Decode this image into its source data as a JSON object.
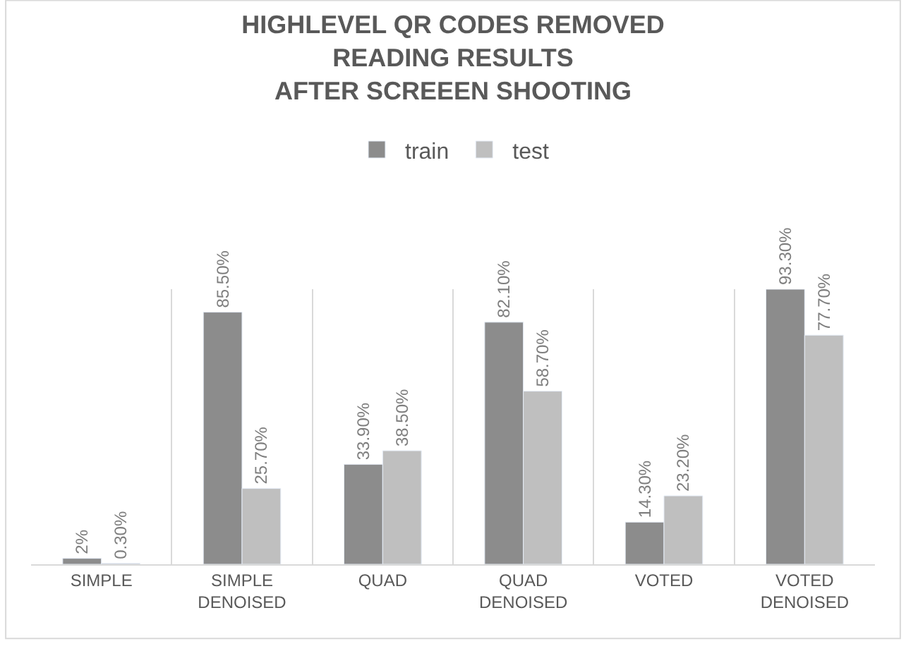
{
  "chart_data": {
    "type": "bar",
    "title": "HIGHLEVEL QR CODES REMOVED\nREADING RESULTS\nAFTER SCREEEN SHOOTING",
    "categories": [
      "SIMPLE",
      "SIMPLE\nDENOISED",
      "QUAD",
      "QUAD\nDENOISED",
      "VOTED",
      "VOTED\nDENOISED"
    ],
    "series": [
      {
        "name": "train",
        "color": "#8c8c8c",
        "values": [
          2,
          85.5,
          33.9,
          82.1,
          14.3,
          93.3
        ],
        "value_labels": [
          "2%",
          "85.50%",
          "33.90%",
          "82.10%",
          "14.30%",
          "93.30%"
        ]
      },
      {
        "name": "test",
        "color": "#bfbfbf",
        "values": [
          0.3,
          25.7,
          38.5,
          58.7,
          23.2,
          77.7
        ],
        "value_labels": [
          "0.30%",
          "25.70%",
          "38.50%",
          "58.70%",
          "23.20%",
          "77.70%"
        ]
      }
    ],
    "tick_labels": "x",
    "grid": "x",
    "legend": "top"
  }
}
